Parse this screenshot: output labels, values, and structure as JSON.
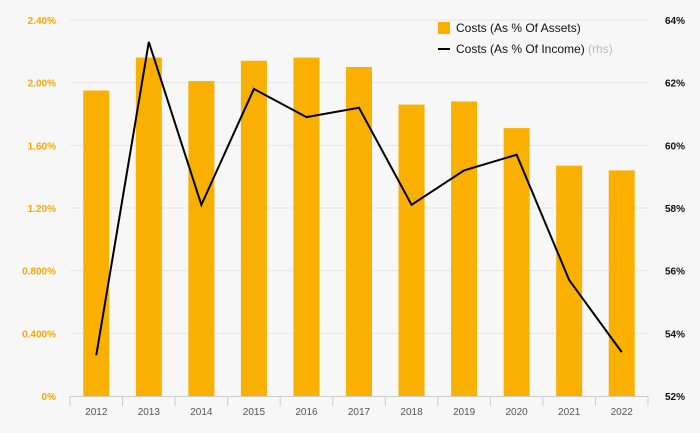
{
  "chart_data": {
    "type": "bar+line",
    "categories": [
      "2012",
      "2013",
      "2014",
      "2015",
      "2016",
      "2017",
      "2018",
      "2019",
      "2020",
      "2021",
      "2022"
    ],
    "series": [
      {
        "name": "Costs (As % Of Assets)",
        "type": "bar",
        "axis": "left",
        "color": "#f9b000",
        "values": [
          1.95,
          2.16,
          2.01,
          2.14,
          2.16,
          2.1,
          1.86,
          1.88,
          1.71,
          1.47,
          1.44
        ]
      },
      {
        "name": "Costs (As % Of Income)",
        "type": "line",
        "axis": "right",
        "color": "#000000",
        "values": [
          53.3,
          63.3,
          58.1,
          61.8,
          60.9,
          61.2,
          58.1,
          59.2,
          59.7,
          55.7,
          53.4
        ]
      }
    ],
    "y_left": {
      "range": [
        0,
        2.4
      ],
      "tick_values": [
        0,
        0.4,
        0.8,
        1.2,
        1.6,
        2.0,
        2.4
      ],
      "tick_labels": [
        "0%",
        "0.400%",
        "0.800%",
        "1.20%",
        "1.60%",
        "2.00%",
        "2.40%"
      ],
      "color": "#f5a800"
    },
    "y_right": {
      "range": [
        52,
        64
      ],
      "tick_values": [
        52,
        54,
        56,
        58,
        60,
        62,
        64
      ],
      "tick_labels": [
        "52%",
        "54%",
        "56%",
        "58%",
        "60%",
        "62%",
        "64%"
      ],
      "color": "#111111"
    },
    "legend": {
      "position": "top-right",
      "entries": [
        {
          "label": "Costs (As % Of Assets)",
          "suffix": "",
          "marker": "square"
        },
        {
          "label": "Costs (As % Of Income)",
          "suffix": "(rhs)",
          "marker": "line"
        }
      ]
    },
    "grid": true
  }
}
